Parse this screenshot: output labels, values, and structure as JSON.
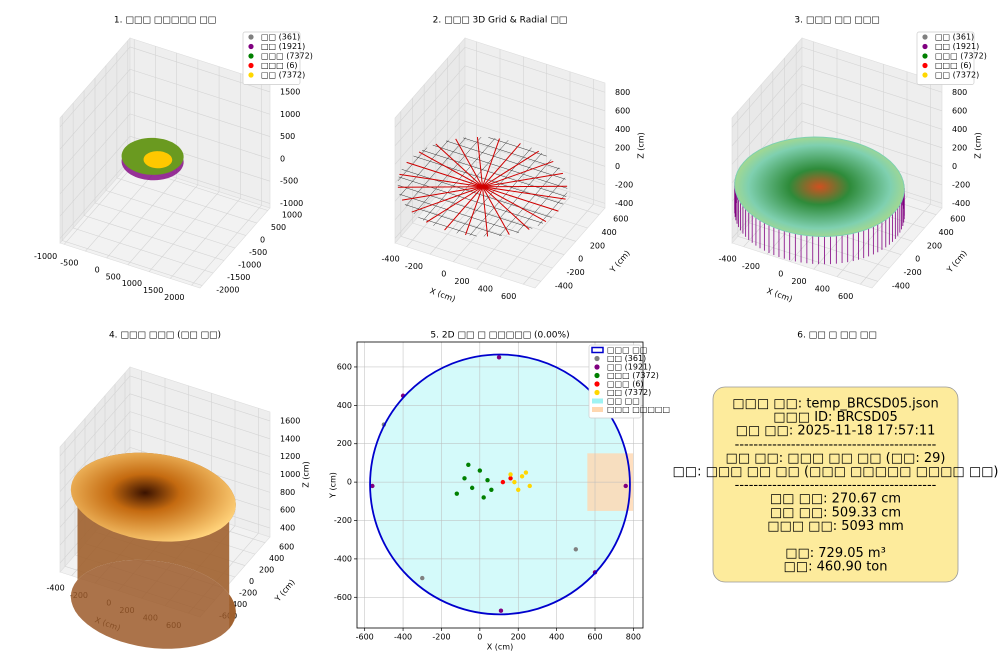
{
  "chart_data": [
    {
      "type": "scatter3d",
      "title": "1. □□□ □□□□□ □□",
      "xlim": [
        -1100,
        2200
      ],
      "ylim": [
        -2100,
        1100
      ],
      "zlim": [
        -1100,
        1700
      ],
      "xticks": [
        -1000,
        -500,
        0,
        500,
        1000,
        1500,
        2000
      ],
      "yticks": [
        -2000,
        -1500,
        -1000,
        -500,
        0,
        500,
        1000
      ],
      "zticks": [
        -1000,
        -500,
        0,
        500,
        1000,
        1500
      ],
      "legend": "upper right",
      "series": [
        {
          "name": "□□ (361)",
          "color": "#808080"
        },
        {
          "name": "□□ (1921)",
          "color": "#800080"
        },
        {
          "name": "□□□ (7372)",
          "color": "#008000"
        },
        {
          "name": "□□□ (6)",
          "color": "#ff0000"
        },
        {
          "name": "□□ (7372)",
          "color": "#ffd700"
        }
      ]
    },
    {
      "type": "lines3d",
      "title": "2. □□□ 3D Grid & Radial □□",
      "xlim": [
        -500,
        700
      ],
      "ylim": [
        -500,
        700
      ],
      "zlim": [
        -450,
        900
      ],
      "xticks": [
        -400,
        -200,
        0,
        200,
        400,
        600
      ],
      "yticks": [
        -400,
        -200,
        0,
        200,
        400,
        600
      ],
      "zticks": [
        -400,
        -200,
        0,
        200,
        400,
        600,
        800
      ],
      "xlabel": "X (cm)",
      "ylabel": "Y (cm)",
      "zlabel": "Z (cm)"
    },
    {
      "type": "scatter3d",
      "title": "3. □□□ □□ □□□",
      "xlim": [
        -500,
        700
      ],
      "ylim": [
        -500,
        700
      ],
      "zlim": [
        -450,
        900
      ],
      "xticks": [
        -400,
        -200,
        0,
        200,
        400,
        600
      ],
      "yticks": [
        -400,
        -200,
        0,
        200,
        400,
        600
      ],
      "zticks": [
        -400,
        -200,
        0,
        200,
        400,
        600,
        800
      ],
      "xlabel": "X (cm)",
      "ylabel": "Y (cm)",
      "zlabel": "Z (cm)",
      "legend": "upper right",
      "series": [
        {
          "name": "□□ (361)",
          "color": "#808080"
        },
        {
          "name": "□□ (1921)",
          "color": "#800080"
        },
        {
          "name": "□□□ (7372)",
          "color": "#008000"
        },
        {
          "name": "□□□ (6)",
          "color": "#ff0000"
        },
        {
          "name": "□□ (7372)",
          "color": "#ffd700"
        }
      ]
    },
    {
      "type": "surface3d",
      "title": "4. □□□ □□□ (□□ □□)",
      "xlim": [
        -500,
        700
      ],
      "ylim": [
        -700,
        700
      ],
      "zlim": [
        300,
        1700
      ],
      "xticks": [
        -400,
        -200,
        0,
        200,
        400,
        600
      ],
      "yticks": [
        -600,
        -400,
        -200,
        0,
        200,
        400,
        600
      ],
      "zticks": [
        400,
        600,
        800,
        1000,
        1200,
        1400,
        1600
      ],
      "xlabel": "X (cm)",
      "ylabel": "Y (cm)",
      "zlabel": "Z (cm)"
    },
    {
      "type": "scatter",
      "title": "5. 2D □□ □ □□□□□ (0.00%)",
      "xlim": [
        -640,
        850
      ],
      "ylim": [
        -760,
        730
      ],
      "xticks": [
        -600,
        -400,
        -200,
        0,
        200,
        400,
        600,
        800
      ],
      "yticks": [
        -600,
        -400,
        -200,
        0,
        200,
        400,
        600
      ],
      "xlabel": "X (cm)",
      "ylabel": "Y (cm)",
      "grid": true,
      "legend": "upper right",
      "boundary": {
        "name": "□□□ □□",
        "color": "#0000cd",
        "cx": 105,
        "cy": -12,
        "r": 677
      },
      "series": [
        {
          "name": "□□ (361)",
          "color": "#808080",
          "x": [
            -500,
            -300,
            500
          ],
          "y": [
            300,
            -500,
            -350
          ]
        },
        {
          "name": "□□ (1921)",
          "color": "#800080",
          "x": [
            -560,
            760,
            100,
            110,
            -400,
            600
          ],
          "y": [
            -20,
            -20,
            650,
            -670,
            450,
            -470
          ]
        },
        {
          "name": "□□□ (7372)",
          "color": "#008000",
          "x": [
            -80,
            -40,
            0,
            40,
            -120,
            20,
            -60,
            60
          ],
          "y": [
            20,
            -30,
            60,
            10,
            -60,
            -80,
            90,
            -40
          ]
        },
        {
          "name": "□□□ (6)",
          "color": "#ff0000",
          "x": [
            120,
            160
          ],
          "y": [
            0,
            20
          ]
        },
        {
          "name": "□□ (7372)",
          "color": "#ffd700",
          "x": [
            180,
            220,
            260,
            200,
            240,
            160
          ],
          "y": [
            0,
            30,
            -20,
            -40,
            50,
            40
          ]
        }
      ],
      "areas": [
        {
          "name": "□□ □□",
          "color": "#9ff3f3"
        },
        {
          "name": "□□□ □□□□□",
          "color": "#ffd7b0"
        }
      ]
    },
    {
      "type": "text",
      "title": "6. □□ □ □□ □□",
      "lines": [
        "□□□ □□: temp_BRCSD05.json",
        "□□□ ID: BRCSD05",
        "□□ □□: 2025-11-18 17:57:11",
        "-------------------------------------------",
        "□□ □□: □□□ □□ □□ (□□: 29)",
        "□□: □□□ □□ □□ (□□□ □□□□□ □□□□ □□)",
        "-------------------------------------------",
        "□□ □□: 270.67 cm",
        "□□ □□: 509.33 cm",
        "□□□ □□: 5093 mm",
        "□□: 729.05 m³",
        "□□: 460.90 ton"
      ]
    }
  ]
}
